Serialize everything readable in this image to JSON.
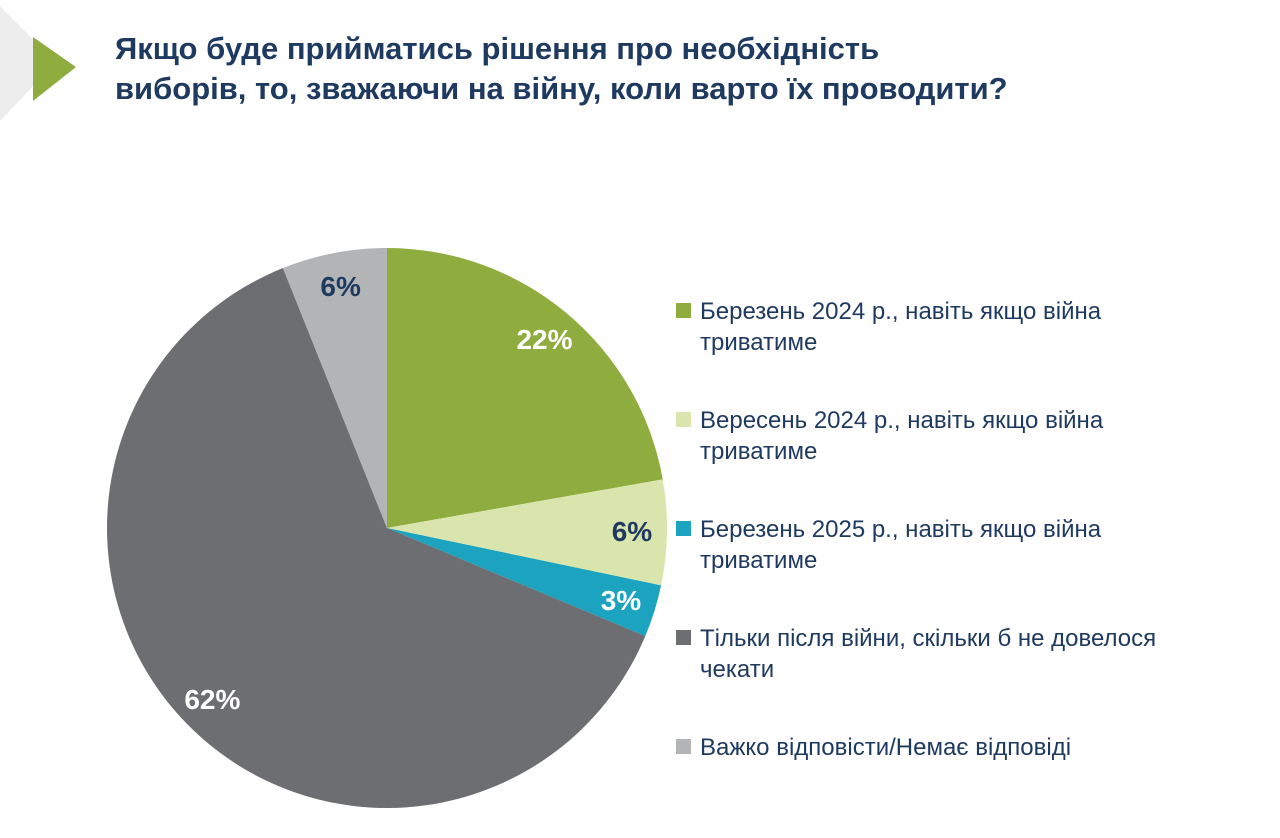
{
  "title": "Якщо буде прийматись рішення про необхідність виборів, то, зважаючи на війну, коли варто їх проводити?",
  "colors": {
    "title_text": "#1F3A60",
    "legend_text": "#1F3A60",
    "background": "#FFFFFF",
    "accent_arrow_green": "#8FAD3F",
    "accent_arrow_backdrop": "#EDEDED"
  },
  "chart_data": {
    "type": "pie",
    "title": "Якщо буде прийматись рішення про необхідність виборів, то, зважаючи на війну, коли варто їх проводити?",
    "legend_position": "right",
    "start_angle_deg": 0,
    "direction": "clockwise",
    "values_unit": "percent",
    "slices": [
      {
        "label": "Березень 2024 р., навіть якщо війна триватиме",
        "value": 22,
        "display": "22%",
        "color": "#8FAD3F",
        "label_color": "#FFFFFF"
      },
      {
        "label": "Вересень 2024 р., навіть якщо війна триватиме",
        "value": 6,
        "display": "6%",
        "color": "#D9E5AC",
        "label_color": "#1F3A60"
      },
      {
        "label": "Березень 2025 р., навіть якщо війна триватиме",
        "value": 3,
        "display": "3%",
        "color": "#1CA3BF",
        "label_color": "#FFFFFF"
      },
      {
        "label": "Тільки після війни, скільки б не довелося чекати",
        "value": 62,
        "display": "62%",
        "color": "#6D6E71",
        "label_color": "#FFFFFF"
      },
      {
        "label": "Важко відповісти/Немає відповіді",
        "value": 6,
        "display": "6%",
        "color": "#B3B4B6",
        "label_color": "#1F3A60"
      }
    ]
  }
}
